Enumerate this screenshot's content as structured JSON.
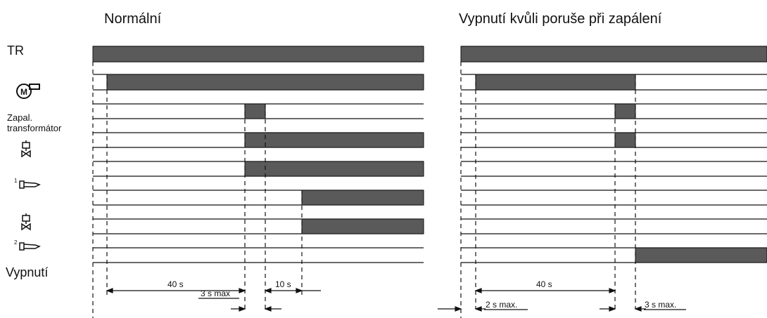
{
  "titles": {
    "normal": "Normální",
    "fault": "Vypnutí kvůli poruše při zapálení"
  },
  "row_labels": {
    "tr": "TR",
    "motor_icon": "motor-icon",
    "ignition_transformer_line1": "Zapal.",
    "ignition_transformer_line2": "transformátor",
    "valve1_icon": "solenoid-valve-icon",
    "flame1_number": "1",
    "flame1_icon": "burner-flame-icon",
    "valve2_icon": "solenoid-valve-icon",
    "flame2_number": "2",
    "flame2_icon": "burner-flame-icon",
    "shutdown": "Vypnutí"
  },
  "timing_labels": {
    "normal_40s": "40 s",
    "normal_3s": "3 s max",
    "normal_10s": "10 s",
    "fault_40s": "40 s",
    "fault_2s": "2 s max.",
    "fault_3s": "3 s max."
  },
  "colors": {
    "bar_fill": "#5a5a5a",
    "line": "#111111"
  }
}
